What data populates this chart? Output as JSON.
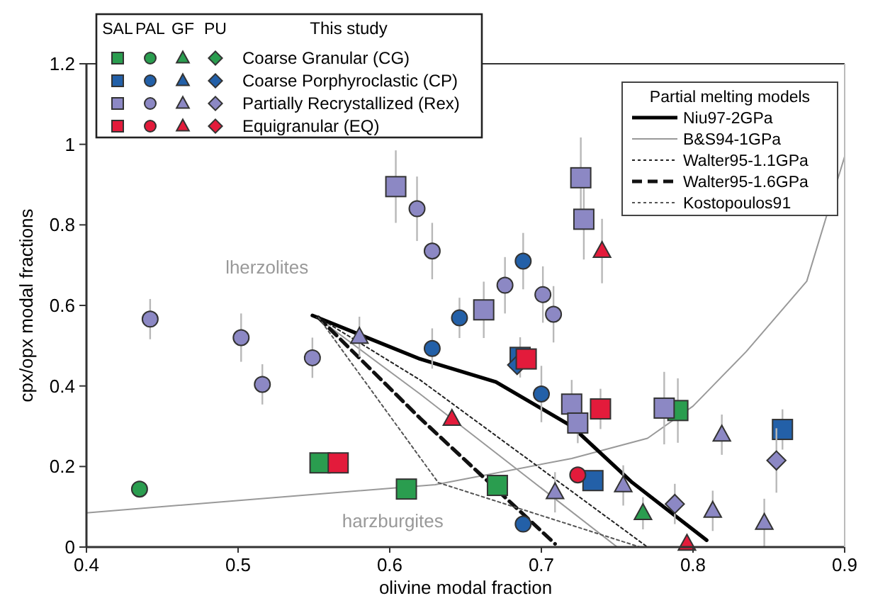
{
  "chart_data": {
    "type": "scatter",
    "xlabel": "olivine modal fraction",
    "ylabel": "cpx/opx modal fractions",
    "xlim": [
      0.4,
      0.9
    ],
    "ylim": [
      0,
      1.2
    ],
    "xticks": [
      0.4,
      0.5,
      0.6,
      0.7,
      0.8,
      0.9
    ],
    "yticks": [
      0,
      0.2,
      0.4,
      0.6,
      0.8,
      1,
      1.2
    ],
    "grid": false,
    "legend": "top",
    "legend_title": "This study",
    "annotations": [
      "SAL",
      "PAL",
      "GF",
      "PU",
      "Partial melting models",
      "lherzolites",
      "harzburgites"
    ],
    "series": [
      {
        "name": "Coarse Granular (CG)",
        "marker": "square",
        "color": "#2a9d4f",
        "x": [
          0.554,
          0.611,
          0.671,
          0.79
        ],
        "values": [
          0.209,
          0.144,
          0.153,
          0.339
        ],
        "errors": [
          null,
          null,
          null,
          0.08
        ]
      },
      {
        "marker": "circle",
        "color": "#2a9d4f",
        "x": [
          0.435
        ],
        "values": [
          0.144
        ],
        "errors": [
          null
        ]
      },
      {
        "marker": "triangle",
        "color": "#2a9d4f",
        "x": [
          0.767
        ],
        "values": [
          0.084
        ],
        "errors": [
          0.04
        ]
      },
      {
        "name": "Coarse Porphyroclastic (CP)",
        "marker": "square",
        "color": "#2360a8",
        "x": [
          0.686,
          0.734,
          0.859
        ],
        "values": [
          0.471,
          0.165,
          0.292
        ],
        "errors": [
          0.05,
          null,
          0.05
        ]
      },
      {
        "marker": "circle",
        "color": "#2360a8",
        "x": [
          0.628,
          0.646,
          0.688,
          0.7,
          0.688
        ],
        "values": [
          0.493,
          0.569,
          0.71,
          0.38,
          0.057
        ],
        "errors": [
          0.05,
          0.05,
          0.07,
          0.07,
          null
        ]
      },
      {
        "marker": "diamond",
        "color": "#2360a8",
        "x": [
          0.684
        ],
        "values": [
          0.452
        ],
        "errors": [
          null
        ]
      },
      {
        "name": "Partially Recrystallized (Rex)",
        "marker": "square",
        "color": "#8c88c4",
        "x": [
          0.604,
          0.662,
          0.72,
          0.724,
          0.726,
          0.728,
          0.781
        ],
        "values": [
          0.895,
          0.589,
          0.355,
          0.308,
          0.917,
          0.814,
          0.345
        ],
        "errors": [
          0.09,
          0.07,
          0.06,
          0.05,
          0.1,
          0.1,
          0.09
        ]
      },
      {
        "marker": "circle",
        "color": "#8c88c4",
        "x": [
          0.442,
          0.502,
          0.516,
          0.549,
          0.618,
          0.628,
          0.676,
          0.701,
          0.708
        ],
        "values": [
          0.566,
          0.52,
          0.404,
          0.47,
          0.84,
          0.735,
          0.65,
          0.627,
          0.578
        ],
        "errors": [
          0.05,
          0.06,
          0.05,
          0.05,
          0.08,
          0.07,
          0.07,
          0.07,
          0.07
        ]
      },
      {
        "marker": "triangle",
        "color": "#8c88c4",
        "x": [
          0.58,
          0.709,
          0.754,
          0.813,
          0.819,
          0.847
        ],
        "values": [
          0.522,
          0.136,
          0.153,
          0.09,
          0.279,
          0.06
        ],
        "errors": [
          0.05,
          0.05,
          0.05,
          0.05,
          0.05,
          0.06
        ]
      },
      {
        "marker": "diamond",
        "color": "#8c88c4",
        "x": [
          0.788,
          0.855
        ],
        "values": [
          0.107,
          0.215
        ],
        "errors": [
          0.05,
          0.08
        ]
      },
      {
        "name": "Equigranular (EQ)",
        "marker": "square",
        "color": "#e31b3b",
        "x": [
          0.566,
          0.69,
          0.739
        ],
        "values": [
          0.209,
          0.467,
          0.343
        ],
        "errors": [
          null,
          null,
          0.05
        ]
      },
      {
        "marker": "circle",
        "color": "#e31b3b",
        "x": [
          0.724
        ],
        "values": [
          0.179
        ],
        "errors": [
          null
        ]
      },
      {
        "marker": "triangle",
        "color": "#e31b3b",
        "x": [
          0.641,
          0.74,
          0.796
        ],
        "values": [
          0.318,
          0.735,
          0.008
        ],
        "errors": [
          null,
          0.08,
          null
        ]
      },
      {
        "type": "line",
        "color": "#999999",
        "line_style": "solid",
        "x": [
          0.4,
          0.63,
          0.72,
          0.77,
          0.8,
          0.835,
          0.875,
          0.9
        ],
        "values": [
          0.085,
          0.155,
          0.22,
          0.27,
          0.35,
          0.485,
          0.66,
          0.97
        ]
      },
      {
        "name": "Niu97-2GPa",
        "type": "line",
        "color": "#000000",
        "line_style": "solid",
        "x": [
          0.549,
          0.62,
          0.67,
          0.72,
          0.76,
          0.809
        ],
        "values": [
          0.575,
          0.467,
          0.41,
          0.3,
          0.16,
          0.017
        ]
      },
      {
        "name": "B&S94-1GPa",
        "type": "line",
        "color": "#999999",
        "line_style": "solid",
        "x": [
          0.552,
          0.62,
          0.75
        ],
        "values": [
          0.57,
          0.38,
          0
        ]
      },
      {
        "name": "Walter95-1.1GPa",
        "type": "line",
        "color": "#222222",
        "line_style": "dotted",
        "x": [
          0.553,
          0.62,
          0.77
        ],
        "values": [
          0.57,
          0.415,
          0
        ]
      },
      {
        "name": "Walter95-1.6GPa",
        "type": "line",
        "color": "#111111",
        "line_style": "dashed",
        "x": [
          0.553,
          0.62,
          0.709
        ],
        "values": [
          0.57,
          0.32,
          0.008
        ]
      },
      {
        "name": "Kostopoulos91",
        "type": "line",
        "color": "#555555",
        "line_style": "dotted",
        "x": [
          0.553,
          0.632,
          0.765
        ],
        "values": [
          0.57,
          0.16,
          0
        ]
      }
    ]
  }
}
